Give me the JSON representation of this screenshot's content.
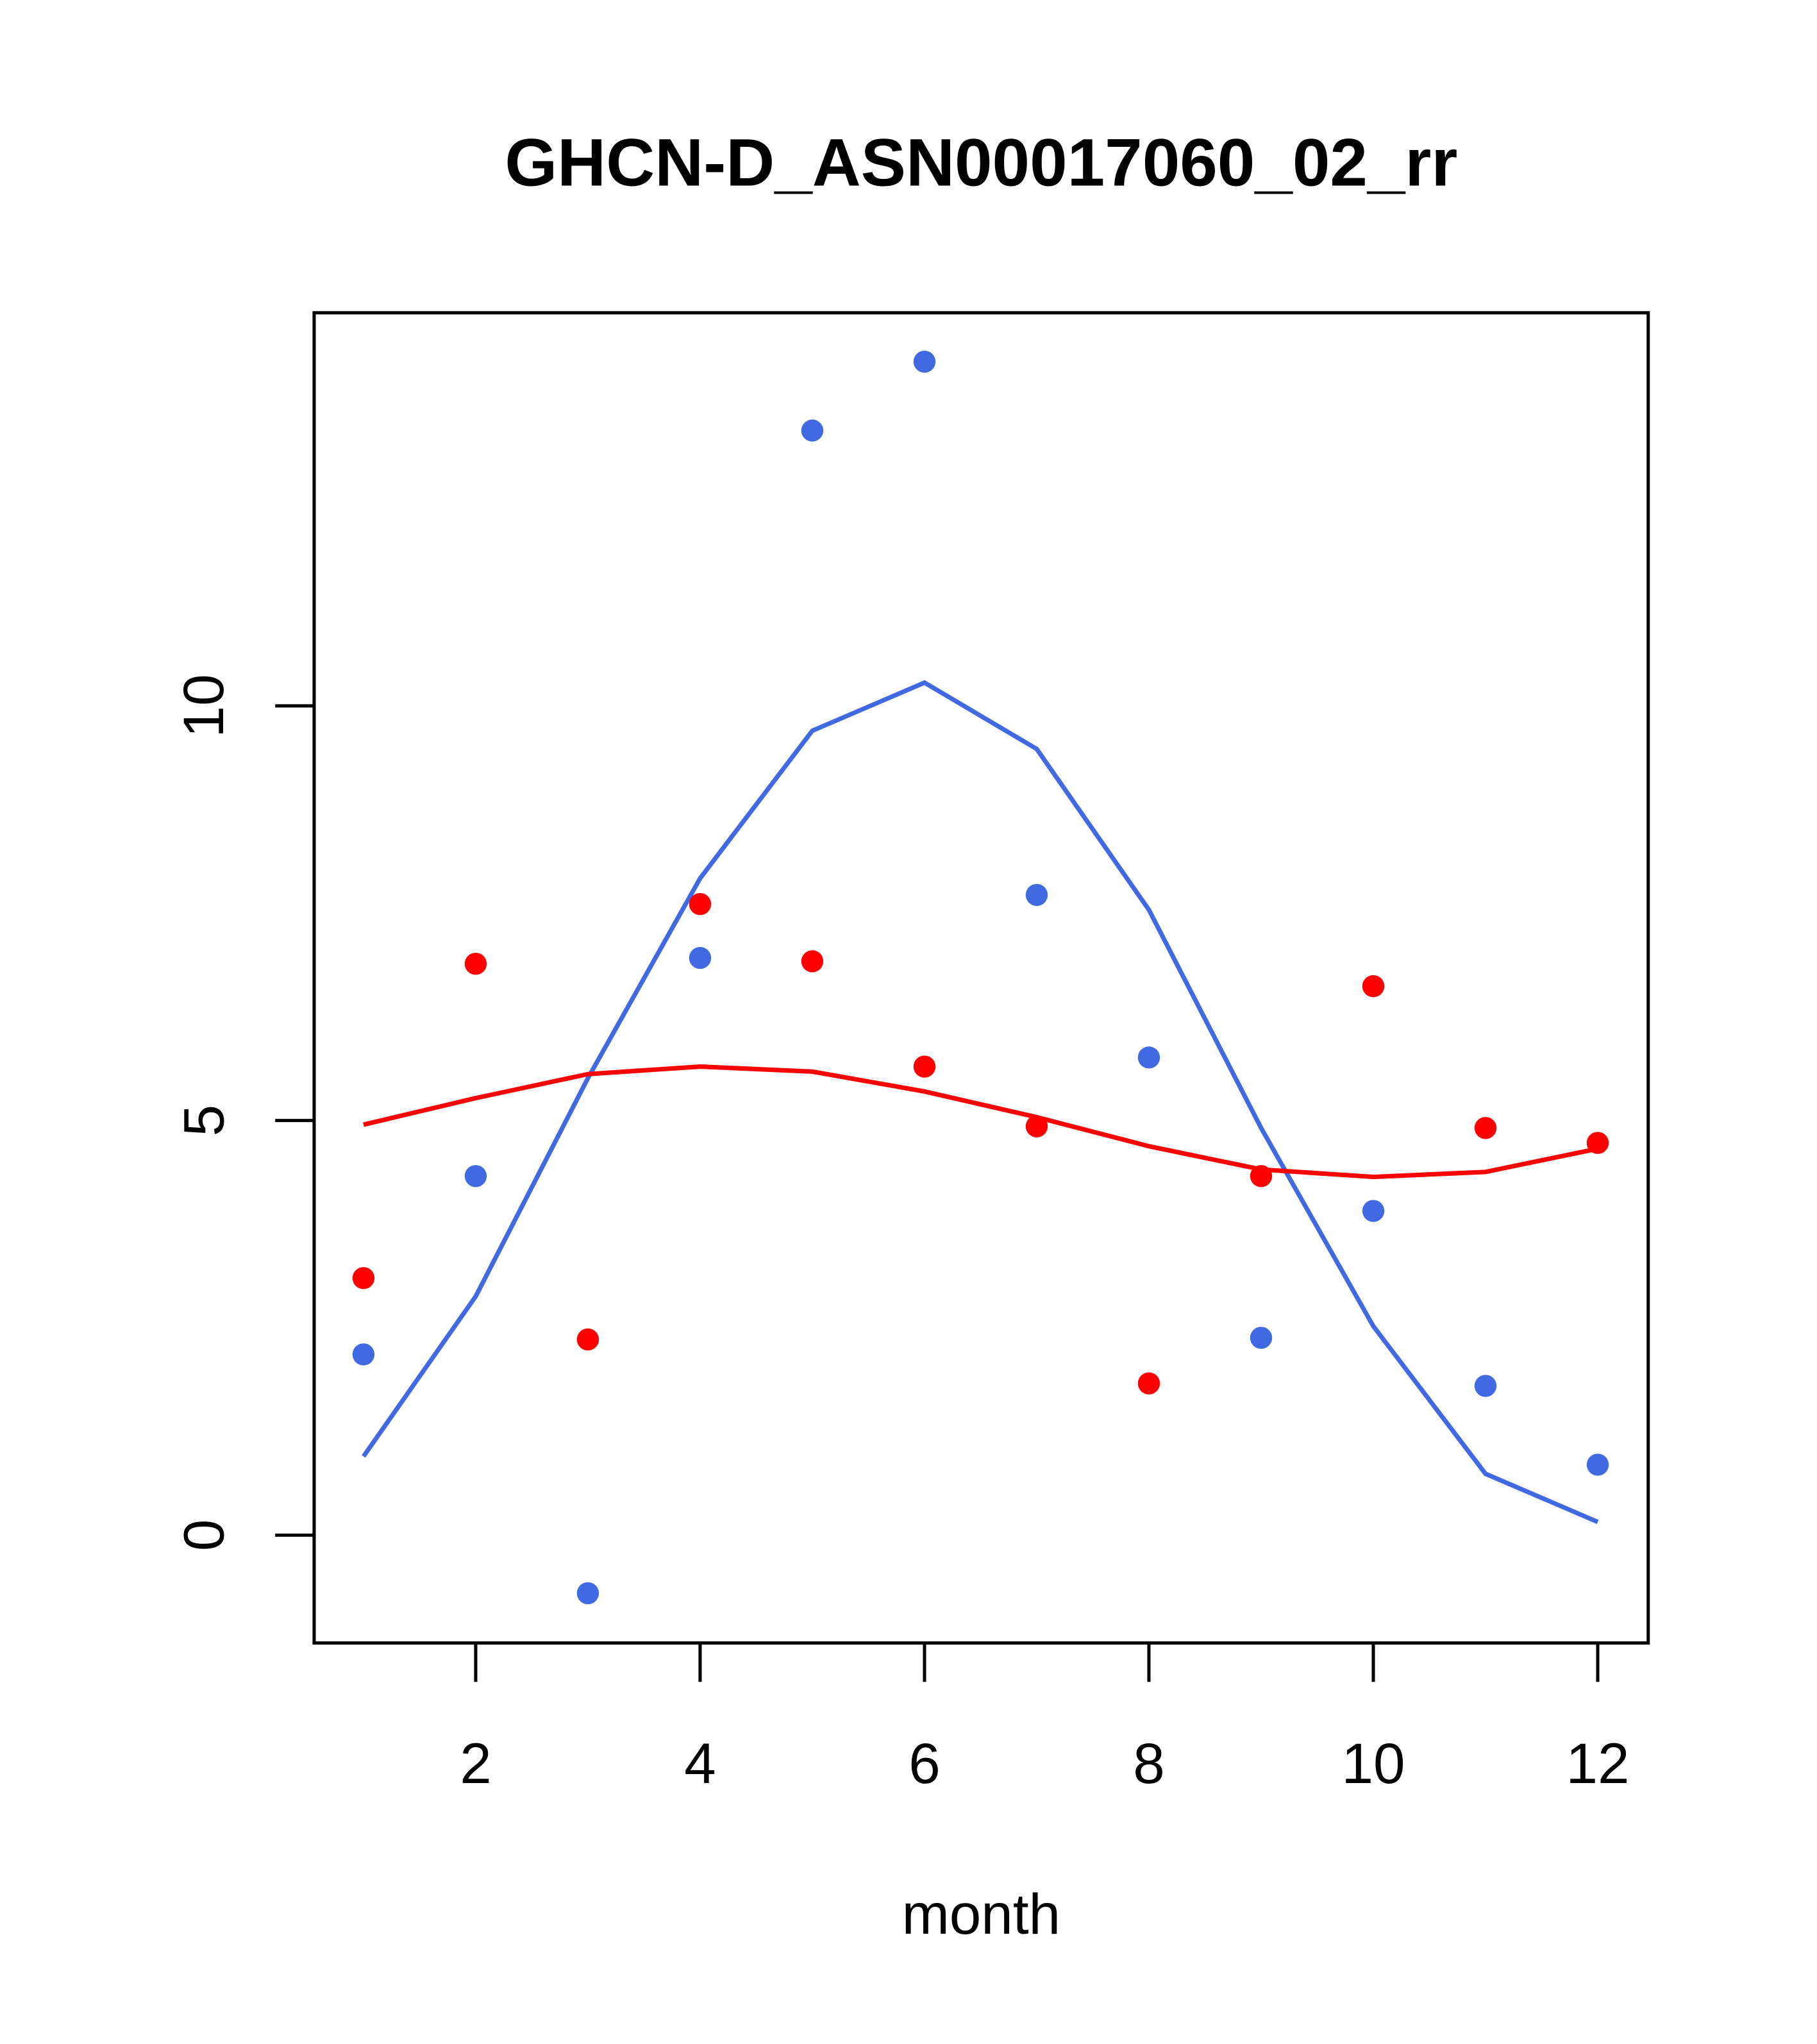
{
  "chart_data": {
    "type": "scatter",
    "title": "GHCN-D_ASN00017060_02_rr",
    "xlabel": "month",
    "ylabel": "",
    "xlim": [
      0.56,
      12.45
    ],
    "ylim": [
      -1.3,
      14.74
    ],
    "xticks": [
      2,
      4,
      6,
      8,
      10,
      12
    ],
    "xtick_labels": [
      "2",
      "4",
      "6",
      "8",
      "10",
      "12"
    ],
    "yticks": [
      0,
      5,
      10
    ],
    "ytick_labels": [
      "0",
      "5",
      "10"
    ],
    "grid": false,
    "x": [
      1,
      2,
      3,
      4,
      5,
      6,
      7,
      8,
      9,
      10,
      11,
      12
    ],
    "series": [
      {
        "name": "blue points",
        "kind": "points",
        "color": "#4169E1",
        "values": [
          2.18,
          4.33,
          -0.7,
          6.96,
          13.32,
          14.15,
          7.72,
          5.76,
          2.38,
          3.91,
          1.8,
          0.85
        ]
      },
      {
        "name": "red points",
        "kind": "points",
        "color": "#FF0000",
        "values": [
          3.1,
          6.89,
          2.36,
          7.61,
          6.92,
          5.65,
          4.93,
          1.83,
          4.33,
          6.62,
          4.91,
          4.73
        ]
      },
      {
        "name": "blue line",
        "kind": "line",
        "color": "#4169E1",
        "values": [
          0.95,
          2.88,
          5.51,
          7.92,
          9.7,
          10.28,
          9.48,
          7.54,
          4.91,
          2.52,
          0.74,
          0.16
        ]
      },
      {
        "name": "red line",
        "kind": "line",
        "color": "#FF0000",
        "values": [
          4.95,
          5.27,
          5.56,
          5.65,
          5.59,
          5.35,
          5.04,
          4.69,
          4.41,
          4.32,
          4.38,
          4.66
        ]
      }
    ]
  }
}
